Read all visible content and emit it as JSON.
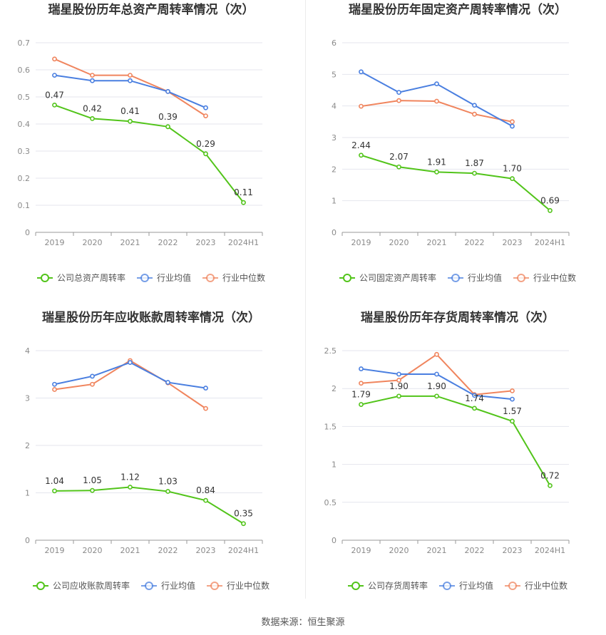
{
  "source_label": "数据来源：恒生聚源",
  "colors": {
    "company": "#52c41a",
    "industry_avg": "#4a7fe0",
    "industry_median": "#f0855e",
    "grid": "#e4e6ee",
    "axis_text": "#8a8a8a",
    "title": "#333333"
  },
  "chart_data": [
    {
      "type": "line",
      "title": "瑞星股份历年总资产周转率情况（次）",
      "categories": [
        "2019",
        "2020",
        "2021",
        "2022",
        "2023",
        "2024H1"
      ],
      "ylim": [
        0,
        0.7
      ],
      "yticks": [
        "0",
        "0.1",
        "0.2",
        "0.3",
        "0.4",
        "0.5",
        "0.6",
        "0.7"
      ],
      "grid": true,
      "legend_position": "bottom",
      "series": [
        {
          "name": "公司总资产周转率",
          "key": "company",
          "values": [
            0.47,
            0.42,
            0.41,
            0.39,
            0.29,
            0.11
          ],
          "labels": [
            "0.47",
            "0.42",
            "0.41",
            "0.39",
            "0.29",
            "0.11"
          ]
        },
        {
          "name": "行业均值",
          "key": "industry_avg",
          "values": [
            0.58,
            0.56,
            0.56,
            0.52,
            0.46,
            null
          ]
        },
        {
          "name": "行业中位数",
          "key": "industry_median",
          "values": [
            0.64,
            0.58,
            0.58,
            0.52,
            0.43,
            null
          ]
        }
      ]
    },
    {
      "type": "line",
      "title": "瑞星股份历年固定资产周转率情况（次）",
      "categories": [
        "2019",
        "2020",
        "2021",
        "2022",
        "2023",
        "2024H1"
      ],
      "ylim": [
        0,
        6
      ],
      "yticks": [
        "0",
        "1",
        "2",
        "3",
        "4",
        "5",
        "6"
      ],
      "grid": true,
      "legend_position": "bottom",
      "series": [
        {
          "name": "公司固定资产周转率",
          "key": "company",
          "values": [
            2.44,
            2.07,
            1.91,
            1.87,
            1.7,
            0.69
          ],
          "labels": [
            "2.44",
            "2.07",
            "1.91",
            "1.87",
            "1.70",
            "0.69"
          ]
        },
        {
          "name": "行业均值",
          "key": "industry_avg",
          "values": [
            5.08,
            4.43,
            4.7,
            4.02,
            3.36,
            null
          ]
        },
        {
          "name": "行业中位数",
          "key": "industry_median",
          "values": [
            3.99,
            4.17,
            4.15,
            3.74,
            3.5,
            null
          ]
        }
      ]
    },
    {
      "type": "line",
      "title": "瑞星股份历年应收账款周转率情况（次）",
      "categories": [
        "2019",
        "2020",
        "2021",
        "2022",
        "2023",
        "2024H1"
      ],
      "ylim": [
        0,
        4
      ],
      "yticks": [
        "0",
        "1",
        "2",
        "3",
        "4"
      ],
      "grid": true,
      "legend_position": "bottom",
      "series": [
        {
          "name": "公司应收账款周转率",
          "key": "company",
          "values": [
            1.04,
            1.05,
            1.12,
            1.03,
            0.84,
            0.35
          ],
          "labels": [
            "1.04",
            "1.05",
            "1.12",
            "1.03",
            "0.84",
            "0.35"
          ]
        },
        {
          "name": "行业均值",
          "key": "industry_avg",
          "values": [
            3.29,
            3.46,
            3.75,
            3.33,
            3.21,
            null
          ]
        },
        {
          "name": "行业中位数",
          "key": "industry_median",
          "values": [
            3.18,
            3.29,
            3.79,
            3.32,
            2.78,
            null
          ]
        }
      ]
    },
    {
      "type": "line",
      "title": "瑞星股份历年存货周转率情况（次）",
      "categories": [
        "2019",
        "2020",
        "2021",
        "2022",
        "2023",
        "2024H1"
      ],
      "ylim": [
        0,
        2.5
      ],
      "yticks": [
        "0",
        "0.5",
        "1",
        "1.5",
        "2",
        "2.5"
      ],
      "grid": true,
      "legend_position": "bottom",
      "series": [
        {
          "name": "公司存货周转率",
          "key": "company",
          "values": [
            1.79,
            1.9,
            1.9,
            1.74,
            1.57,
            0.72
          ],
          "labels": [
            "1.79",
            "1.90",
            "1.90",
            "1.74",
            "1.57",
            "0.72"
          ]
        },
        {
          "name": "行业均值",
          "key": "industry_avg",
          "values": [
            2.26,
            2.19,
            2.19,
            1.91,
            1.86,
            null
          ]
        },
        {
          "name": "行业中位数",
          "key": "industry_median",
          "values": [
            2.07,
            2.11,
            2.45,
            1.92,
            1.97,
            null
          ]
        }
      ]
    }
  ]
}
